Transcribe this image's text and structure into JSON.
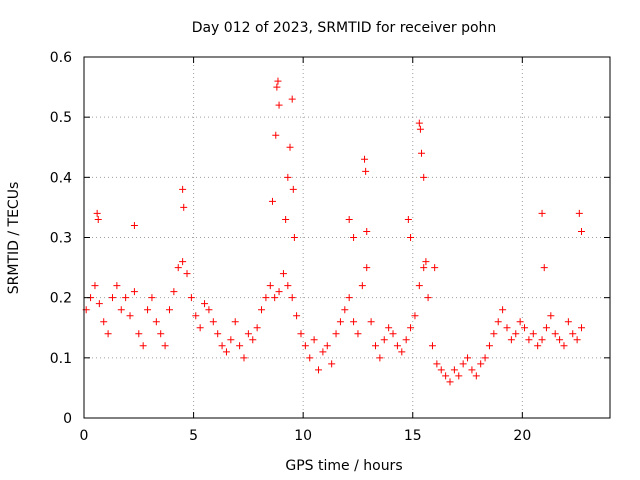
{
  "chart_data": {
    "type": "scatter",
    "title": "Day 012 of 2023, SRMTID for receiver pohn",
    "xlabel": "GPS time / hours",
    "ylabel": "SRMTID / TECUs",
    "xlim": [
      0,
      24
    ],
    "ylim": [
      0,
      0.6
    ],
    "xticks": [
      0,
      5,
      10,
      15,
      20
    ],
    "xtick_labels": [
      "0",
      "5",
      "10",
      "15",
      "20"
    ],
    "yticks": [
      0,
      0.1,
      0.2,
      0.3,
      0.4,
      0.5,
      0.6
    ],
    "ytick_labels": [
      "0",
      "0.1",
      "0.2",
      "0.3",
      "0.4",
      "0.5",
      "0.6"
    ],
    "grid": true,
    "marker": "+",
    "color": "#ff0000",
    "series": [
      {
        "name": "pohn",
        "x": [
          0.1,
          0.3,
          0.5,
          0.7,
          0.9,
          1.1,
          1.3,
          1.5,
          1.7,
          1.9,
          2.1,
          2.3,
          2.5,
          2.7,
          2.9,
          3.1,
          3.3,
          3.5,
          3.7,
          3.9,
          4.1,
          4.3,
          4.5,
          4.7,
          4.9,
          5.1,
          5.3,
          5.5,
          5.7,
          5.9,
          6.1,
          6.3,
          6.5,
          6.7,
          6.9,
          7.1,
          7.3,
          7.5,
          7.7,
          7.9,
          8.1,
          8.3,
          8.5,
          8.7,
          8.9,
          9.1,
          9.3,
          9.5,
          9.7,
          9.9,
          10.1,
          10.3,
          10.5,
          10.7,
          10.9,
          11.1,
          11.3,
          11.5,
          11.7,
          11.9,
          12.1,
          12.3,
          12.5,
          12.7,
          12.9,
          13.1,
          13.3,
          13.5,
          13.7,
          13.9,
          14.1,
          14.3,
          14.5,
          14.7,
          14.9,
          15.1,
          15.3,
          15.5,
          15.7,
          15.9,
          16.1,
          16.3,
          16.5,
          16.7,
          16.9,
          17.1,
          17.3,
          17.5,
          17.7,
          17.9,
          18.1,
          18.3,
          18.5,
          18.7,
          18.9,
          19.1,
          19.3,
          19.5,
          19.7,
          19.9,
          20.1,
          20.3,
          20.5,
          20.7,
          20.9,
          21.1,
          21.3,
          21.5,
          21.7,
          21.9,
          22.1,
          22.3,
          22.5,
          22.7,
          0.6,
          0.65,
          2.3,
          4.5,
          4.55,
          8.6,
          8.75,
          8.8,
          8.85,
          8.9,
          9.2,
          9.3,
          9.4,
          9.5,
          9.55,
          9.6,
          12.1,
          12.3,
          12.8,
          12.85,
          12.9,
          14.8,
          14.9,
          15.3,
          15.35,
          15.4,
          15.5,
          15.6,
          16.0,
          20.9,
          21.0,
          22.6,
          22.7
        ],
        "y": [
          0.18,
          0.2,
          0.22,
          0.19,
          0.16,
          0.14,
          0.2,
          0.22,
          0.18,
          0.2,
          0.17,
          0.21,
          0.14,
          0.12,
          0.18,
          0.2,
          0.16,
          0.14,
          0.12,
          0.18,
          0.21,
          0.25,
          0.26,
          0.24,
          0.2,
          0.17,
          0.15,
          0.19,
          0.18,
          0.16,
          0.14,
          0.12,
          0.11,
          0.13,
          0.16,
          0.12,
          0.1,
          0.14,
          0.13,
          0.15,
          0.18,
          0.2,
          0.22,
          0.2,
          0.21,
          0.24,
          0.22,
          0.2,
          0.17,
          0.14,
          0.12,
          0.1,
          0.13,
          0.08,
          0.11,
          0.12,
          0.09,
          0.14,
          0.16,
          0.18,
          0.2,
          0.16,
          0.14,
          0.22,
          0.25,
          0.16,
          0.12,
          0.1,
          0.13,
          0.15,
          0.14,
          0.12,
          0.11,
          0.13,
          0.15,
          0.17,
          0.22,
          0.25,
          0.2,
          0.12,
          0.09,
          0.08,
          0.07,
          0.06,
          0.08,
          0.07,
          0.09,
          0.1,
          0.08,
          0.07,
          0.09,
          0.1,
          0.12,
          0.14,
          0.16,
          0.18,
          0.15,
          0.13,
          0.14,
          0.16,
          0.15,
          0.13,
          0.14,
          0.12,
          0.13,
          0.15,
          0.17,
          0.14,
          0.13,
          0.12,
          0.16,
          0.14,
          0.13,
          0.15,
          0.34,
          0.33,
          0.32,
          0.38,
          0.35,
          0.36,
          0.47,
          0.55,
          0.56,
          0.52,
          0.33,
          0.4,
          0.45,
          0.53,
          0.38,
          0.3,
          0.33,
          0.3,
          0.43,
          0.41,
          0.31,
          0.33,
          0.3,
          0.49,
          0.48,
          0.44,
          0.4,
          0.26,
          0.25,
          0.34,
          0.25,
          0.34,
          0.31
        ]
      }
    ]
  }
}
